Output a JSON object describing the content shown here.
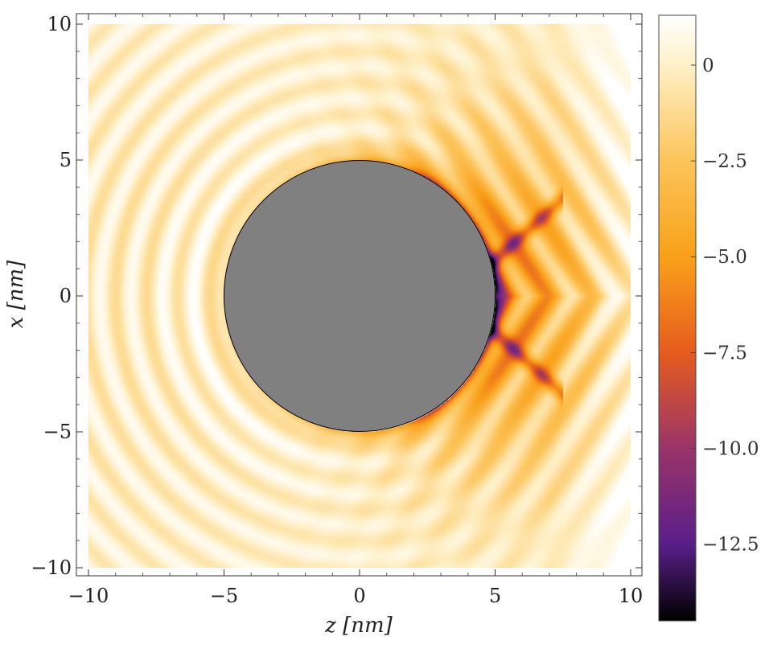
{
  "chart_data": {
    "type": "heatmap",
    "xlabel": "z [nm]",
    "ylabel": "x [nm]",
    "xlim": [
      -10,
      10
    ],
    "ylim": [
      -10,
      10
    ],
    "xticks": [
      "−10",
      "−5",
      "0",
      "5",
      "10"
    ],
    "yticks": [
      "10",
      "5",
      "0",
      "−5",
      "−10"
    ],
    "xtick_values": [
      -10,
      -5,
      0,
      5,
      10
    ],
    "ytick_values": [
      10,
      5,
      0,
      -5,
      -10
    ],
    "obstacle": {
      "shape": "circle",
      "center": [
        0,
        0
      ],
      "radius": 5,
      "color": "#808080"
    },
    "colorbar": {
      "range": [
        -14.5,
        1.3
      ],
      "ticks": [
        "0",
        "−2.5",
        "−5.0",
        "−7.5",
        "−10.0",
        "−12.5"
      ],
      "tick_values": [
        0,
        -2.5,
        -5.0,
        -7.5,
        -10.0,
        -12.5
      ],
      "colormap_stops": [
        {
          "v": -14.5,
          "color": "#000000"
        },
        {
          "v": -12.5,
          "color": "#5a1e8a"
        },
        {
          "v": -10.0,
          "color": "#9a3468"
        },
        {
          "v": -7.5,
          "color": "#e65c1e"
        },
        {
          "v": -5.0,
          "color": "#f9a019"
        },
        {
          "v": -2.5,
          "color": "#fcc45a"
        },
        {
          "v": 0,
          "color": "#fef0c8"
        },
        {
          "v": 1.3,
          "color": "#ffffff"
        }
      ]
    },
    "field_features": {
      "wave_period_nm": 1.15,
      "bright_band_radius_nm": 6.3,
      "shadow_side": "positive z"
    }
  }
}
